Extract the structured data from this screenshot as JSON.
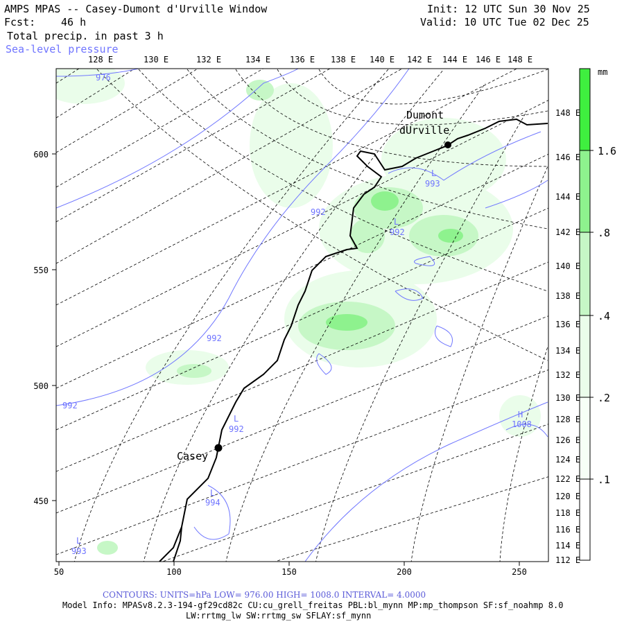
{
  "header": {
    "title": "AMPS MPAS -- Casey-Dumont d'Urville Window",
    "fcst_label": "Fcst:",
    "fcst_value": "46 h",
    "field1": "Total precip. in past 3 h",
    "field2": "Sea-level pressure",
    "init": "Init: 12 UTC Sun 30 Nov 25",
    "valid": "Valid: 10 UTC Tue 02 Dec 25"
  },
  "top_lon_labels": [
    "128 E",
    "130 E",
    "132 E",
    "134 E",
    "136 E",
    "138 E",
    "140 E",
    "142 E",
    "144 E",
    "146 E",
    "148 E"
  ],
  "right_lon_labels": [
    "148 E",
    "146 E",
    "144 E",
    "142 E",
    "140 E",
    "138 E",
    "136 E",
    "134 E",
    "132 E",
    "130 E",
    "128 E",
    "126 E",
    "124 E",
    "122 E",
    "120 E",
    "118 E",
    "116 E",
    "114 E",
    "112 E"
  ],
  "x_axis": {
    "ticks": [
      50,
      100,
      150,
      200,
      250
    ]
  },
  "y_axis": {
    "ticks": [
      450,
      500,
      550,
      600
    ]
  },
  "colorbar": {
    "unit": "mm",
    "labels": [
      "1.6",
      ".8",
      ".4",
      ".2",
      ".1"
    ],
    "colors": {
      "level1": "#ffffff",
      "level2": "#eafdea",
      "level3": "#c6f7c6",
      "level4": "#8ef28e",
      "level5": "#3fef3f"
    }
  },
  "stations": [
    {
      "name_line1": "Dumont",
      "name_line2": "dUrville"
    },
    {
      "name_line1": "Casey",
      "name_line2": ""
    }
  ],
  "pressure_labels": [
    {
      "text": "976"
    },
    {
      "text": "992"
    },
    {
      "text": "992"
    },
    {
      "text": "992"
    },
    {
      "text": "992"
    },
    {
      "text": "993"
    },
    {
      "text": "993"
    },
    {
      "text": "994"
    },
    {
      "text": "1008"
    },
    {
      "text": "992"
    }
  ],
  "pressure_centers": [
    {
      "letter": "L"
    },
    {
      "letter": "L"
    },
    {
      "letter": "L"
    },
    {
      "letter": "L"
    },
    {
      "letter": "L"
    },
    {
      "letter": "H"
    }
  ],
  "footer": {
    "contours": "CONTOURS:  UNITS=hPa  LOW=  976.00     HIGH=  1008.0     INTERVAL=   4.0000",
    "model_info": "Model Info: MPASv8.2.3-194-gf29cd82c CU:cu_grell_freitas PBL:bl_mynn MP:mp_thompson SF:sf_noahmp 8.0",
    "model_info2": "LW:rrtmg_lw SW:rrtmg_sw SFLAY:sf_mynn"
  },
  "colors": {
    "isobar": "#7077ff",
    "grid": "#000000",
    "coast": "#000000"
  }
}
